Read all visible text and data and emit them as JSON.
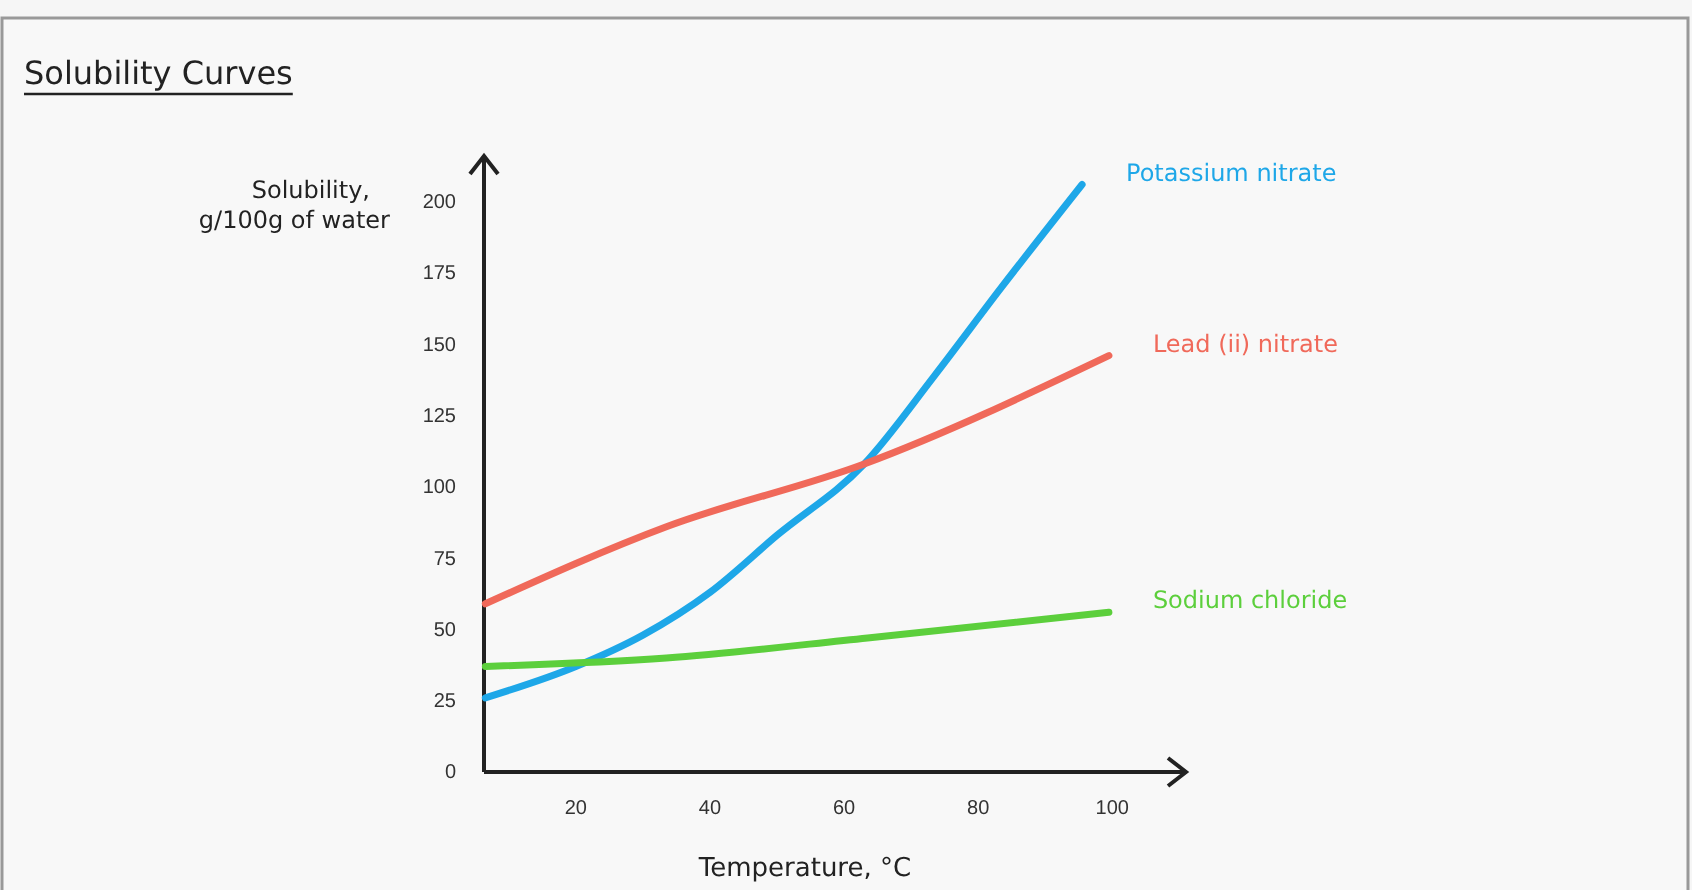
{
  "chart_data": {
    "type": "line",
    "title": "Solubility Curves",
    "xlabel": "Temperature, °C",
    "ylabel": "Solubility,\ng/100g of water",
    "xlim": [
      6.3,
      111
    ],
    "ylim": [
      0,
      216
    ],
    "xticks": [
      20,
      40,
      60,
      80,
      100
    ],
    "yticks": [
      0,
      25,
      50,
      75,
      100,
      125,
      150,
      175,
      200
    ],
    "grid": false,
    "marker": "none",
    "line_style": "solid",
    "series": [
      {
        "name": "Potassium nitrate",
        "color": "#1ea7e8",
        "x": [
          6.5,
          20,
          30,
          40,
          50,
          63,
          73.5,
          83.5,
          95.5
        ],
        "values": [
          26,
          37,
          48,
          63,
          83,
          108,
          139,
          170,
          206
        ]
      },
      {
        "name": "Lead (ii) nitrate",
        "color": "#f0695a",
        "x": [
          6.5,
          33.5,
          63,
          99.5
        ],
        "values": [
          59,
          86,
          108,
          146
        ]
      },
      {
        "name": "Sodium chloride",
        "color": "#5ccf3c",
        "x": [
          6.5,
          33.5,
          63.5,
          99.5
        ],
        "values": [
          37,
          40,
          47,
          56
        ]
      }
    ]
  }
}
